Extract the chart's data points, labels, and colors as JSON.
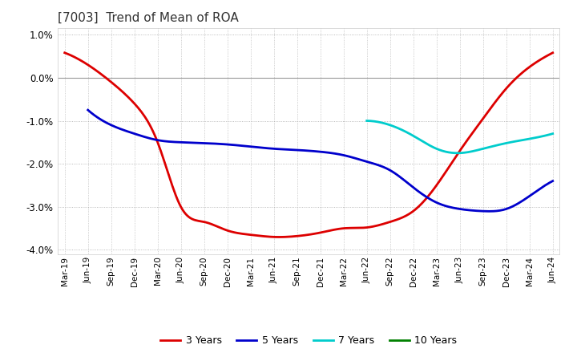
{
  "title": "[7003]  Trend of Mean of ROA",
  "ylim": [
    -4.1,
    1.15
  ],
  "yticks": [
    1.0,
    0.0,
    -1.0,
    -2.0,
    -3.0,
    -4.0
  ],
  "background_color": "#ffffff",
  "plot_background_color": "#ffffff",
  "grid_color": "#aaaaaa",
  "x_labels": [
    "Mar-19",
    "Jun-19",
    "Sep-19",
    "Dec-19",
    "Mar-20",
    "Jun-20",
    "Sep-20",
    "Dec-20",
    "Mar-21",
    "Jun-21",
    "Sep-21",
    "Dec-21",
    "Mar-22",
    "Jun-22",
    "Sep-22",
    "Dec-22",
    "Mar-23",
    "Jun-23",
    "Sep-23",
    "Dec-23",
    "Mar-24",
    "Jun-24"
  ],
  "series": {
    "3 Years": {
      "color": "#dd0000",
      "data": [
        0.58,
        0.3,
        -0.1,
        -0.6,
        -1.5,
        -3.0,
        -3.35,
        -3.55,
        -3.65,
        -3.7,
        -3.68,
        -3.6,
        -3.5,
        -3.48,
        -3.35,
        -3.1,
        -2.5,
        -1.7,
        -0.95,
        -0.25,
        0.25,
        0.58
      ]
    },
    "5 Years": {
      "color": "#0000cc",
      "data": [
        null,
        -0.75,
        -1.1,
        -1.3,
        -1.45,
        -1.5,
        -1.52,
        -1.55,
        -1.6,
        -1.65,
        -1.68,
        -1.72,
        -1.8,
        -1.95,
        -2.15,
        -2.55,
        -2.9,
        -3.05,
        -3.1,
        -3.05,
        -2.75,
        -2.4
      ]
    },
    "7 Years": {
      "color": "#00cccc",
      "data": [
        null,
        null,
        null,
        null,
        null,
        null,
        null,
        null,
        null,
        null,
        null,
        null,
        null,
        -1.0,
        -1.1,
        -1.35,
        -1.65,
        -1.75,
        -1.65,
        -1.52,
        -1.42,
        -1.3
      ]
    },
    "10 Years": {
      "color": "#008000",
      "data": [
        null,
        null,
        null,
        null,
        null,
        null,
        null,
        null,
        null,
        null,
        null,
        null,
        null,
        null,
        null,
        null,
        null,
        null,
        null,
        null,
        null,
        null
      ]
    }
  }
}
